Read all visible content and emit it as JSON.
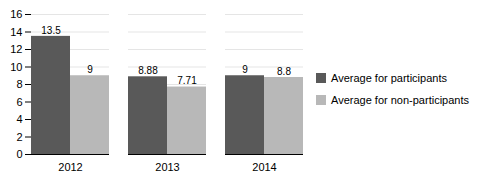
{
  "chart_data": {
    "type": "bar",
    "categories": [
      "2012",
      "2013",
      "2014"
    ],
    "series": [
      {
        "name": "Average for participants",
        "color": "#595959",
        "values": [
          13.5,
          8.88,
          9
        ]
      },
      {
        "name": "Average for non-participants",
        "color": "#b8b8b8",
        "values": [
          9,
          7.71,
          8.8
        ]
      }
    ],
    "ylim": [
      0,
      16
    ],
    "yticks": [
      0,
      2,
      4,
      6,
      8,
      10,
      12,
      14,
      16
    ],
    "grid": true,
    "legend": "right",
    "data_labels": true
  }
}
